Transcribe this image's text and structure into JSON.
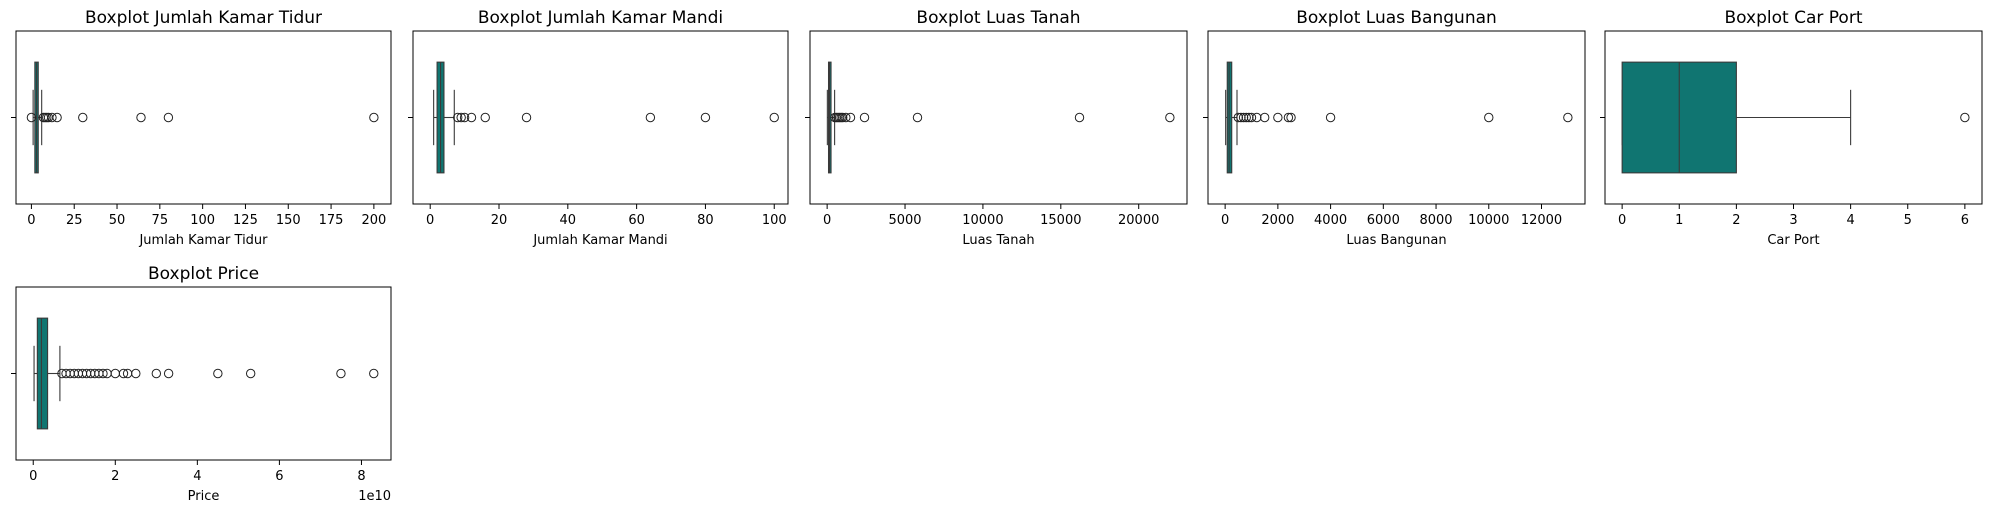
{
  "figure": {
    "box_color": "#107571",
    "edge_color": "#3a3a3a"
  },
  "chart_data": [
    {
      "type": "boxplot",
      "title": "Boxplot Jumlah Kamar Tidur",
      "xlabel": "Jumlah Kamar Tidur",
      "xlim": [
        -9,
        210
      ],
      "xticks": [
        0,
        25,
        50,
        75,
        100,
        125,
        150,
        175,
        200
      ],
      "tick_labels": [
        "0",
        "25",
        "50",
        "75",
        "100",
        "125",
        "150",
        "175",
        "200"
      ],
      "q1": 2,
      "median": 3,
      "q3": 4,
      "whisker_low": 1,
      "whisker_high": 6,
      "outliers": [
        0,
        7,
        8,
        9,
        10,
        12,
        15,
        30,
        64,
        80,
        200
      ]
    },
    {
      "type": "boxplot",
      "title": "Boxplot Jumlah Kamar Mandi",
      "xlabel": "Jumlah Kamar Mandi",
      "xlim": [
        -5,
        104
      ],
      "xticks": [
        0,
        20,
        40,
        60,
        80,
        100
      ],
      "tick_labels": [
        "0",
        "20",
        "40",
        "60",
        "80",
        "100"
      ],
      "q1": 2,
      "median": 3,
      "q3": 4,
      "whisker_low": 1,
      "whisker_high": 7,
      "outliers": [
        8,
        9,
        10,
        12,
        16,
        28,
        64,
        80,
        100
      ]
    },
    {
      "type": "boxplot",
      "title": "Boxplot Luas Tanah",
      "xlabel": "Luas Tanah",
      "xlim": [
        -1100,
        23100
      ],
      "xticks": [
        0,
        5000,
        10000,
        15000,
        20000
      ],
      "tick_labels": [
        "0",
        "5000",
        "10000",
        "15000",
        "20000"
      ],
      "q1": 90,
      "median": 150,
      "q3": 250,
      "whisker_low": 14,
      "whisker_high": 480,
      "outliers": [
        500,
        600,
        700,
        800,
        900,
        1000,
        1200,
        1500,
        2400,
        5800,
        16200,
        22000
      ]
    },
    {
      "type": "boxplot",
      "title": "Boxplot Luas Bangunan",
      "xlabel": "Luas Bangunan",
      "xlim": [
        -650,
        13650
      ],
      "xticks": [
        0,
        2000,
        4000,
        6000,
        8000,
        10000,
        12000
      ],
      "tick_labels": [
        "0",
        "2000",
        "4000",
        "6000",
        "8000",
        "10000",
        "12000"
      ],
      "q1": 80,
      "median": 150,
      "q3": 250,
      "whisker_low": 20,
      "whisker_high": 450,
      "outliers": [
        500,
        600,
        700,
        800,
        900,
        1000,
        1200,
        1500,
        2000,
        2400,
        2500,
        4000,
        10000,
        13000
      ]
    },
    {
      "type": "boxplot",
      "title": "Boxplot Car Port",
      "xlabel": "Car Port",
      "xlim": [
        -0.3,
        6.3
      ],
      "xticks": [
        0,
        1,
        2,
        3,
        4,
        5,
        6
      ],
      "tick_labels": [
        "0",
        "1",
        "2",
        "3",
        "4",
        "5",
        "6"
      ],
      "q1": 0,
      "median": 1,
      "q3": 2,
      "whisker_low": 0,
      "whisker_high": 4,
      "outliers": [
        6
      ]
    },
    {
      "type": "boxplot",
      "title": "Boxplot Price",
      "xlabel": "Price",
      "offset_label": "1e10",
      "xlim": [
        -0.42,
        8.72
      ],
      "xticks": [
        0,
        2,
        4,
        6,
        8
      ],
      "tick_labels": [
        "0",
        "2",
        "4",
        "6",
        "8"
      ],
      "q1": 0.1,
      "median": 0.2,
      "q3": 0.35,
      "whisker_low": 0.02,
      "whisker_high": 0.65,
      "outliers": [
        0.7,
        0.8,
        0.9,
        1.0,
        1.1,
        1.2,
        1.3,
        1.4,
        1.5,
        1.6,
        1.7,
        1.8,
        2.0,
        2.2,
        2.3,
        2.5,
        3.0,
        3.3,
        4.5,
        5.3,
        7.5,
        8.3
      ]
    }
  ]
}
